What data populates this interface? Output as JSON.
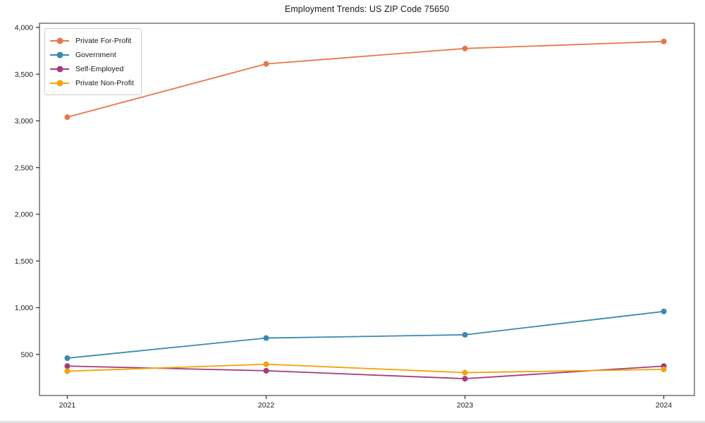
{
  "chart_data": {
    "type": "line",
    "title": "Employment Trends: US ZIP Code 75650",
    "xlabel": "",
    "ylabel": "",
    "x": [
      2021,
      2022,
      2023,
      2024
    ],
    "x_tick_labels": [
      "2021",
      "2022",
      "2023",
      "2024"
    ],
    "y_ticks": [
      500,
      1000,
      1500,
      2000,
      2500,
      3000,
      3500,
      4000
    ],
    "y_tick_labels": [
      "500",
      "1,000",
      "1,500",
      "2,000",
      "2,500",
      "3,000",
      "3,500",
      "4,000"
    ],
    "xlim": [
      2020.86,
      2024.154
    ],
    "ylim": [
      60,
      4045
    ],
    "grid": false,
    "legend_position": "upper-left",
    "axis_color": "#2b2b2b",
    "series": [
      {
        "name": "Private For-Profit",
        "color": "#e8764a",
        "values": [
          3040,
          3610,
          3775,
          3850
        ]
      },
      {
        "name": "Government",
        "color": "#3a89b0",
        "values": [
          460,
          675,
          710,
          960
        ]
      },
      {
        "name": "Self-Employed",
        "color": "#a33b7a",
        "values": [
          375,
          325,
          240,
          375
        ]
      },
      {
        "name": "Private Non-Profit",
        "color": "#f3a209",
        "values": [
          320,
          395,
          305,
          340
        ]
      }
    ]
  }
}
